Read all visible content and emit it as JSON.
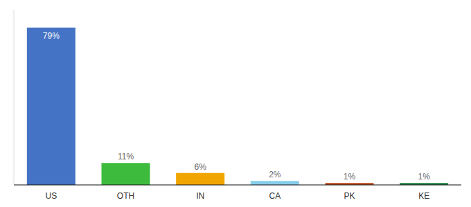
{
  "chart_data": {
    "type": "bar",
    "categories": [
      "US",
      "OTH",
      "IN",
      "CA",
      "PK",
      "KE"
    ],
    "values": [
      79,
      11,
      6,
      2,
      1,
      1
    ],
    "value_labels": [
      "79%",
      "11%",
      "6%",
      "2%",
      "1%",
      "1%"
    ],
    "colors": [
      "#4472c4",
      "#3dbb3d",
      "#f0a500",
      "#87ceeb",
      "#c0522a",
      "#2d8a4e"
    ],
    "ylim": [
      0,
      88
    ],
    "grid": false,
    "data_labels": true,
    "tick_labels": "x"
  }
}
